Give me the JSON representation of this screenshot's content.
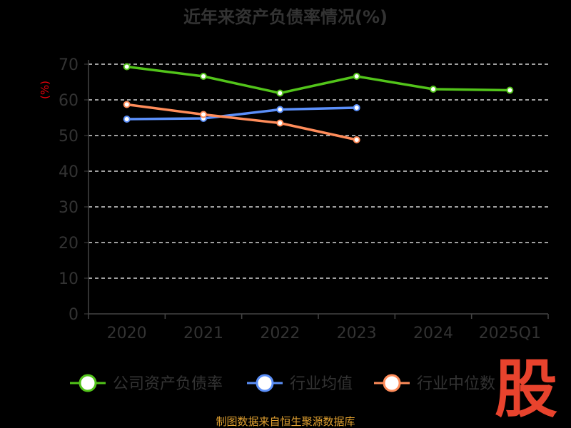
{
  "chart_data": {
    "type": "line",
    "title": "近年来资产负债率情况(%)",
    "ylabel": "(%)",
    "xlabel": "",
    "ylim": [
      0,
      70
    ],
    "yticks": [
      0,
      10,
      20,
      30,
      40,
      50,
      60,
      70
    ],
    "grid": "horizontal dashed",
    "legend_position": "bottom",
    "categories": [
      "2020",
      "2021",
      "2022",
      "2023",
      "2024",
      "2025Q1"
    ],
    "series": [
      {
        "name": "公司资产负债率",
        "color": "#52c41a",
        "values": [
          69.3,
          66.6,
          61.9,
          66.6,
          63.0,
          62.7
        ]
      },
      {
        "name": "行业均值",
        "color": "#5b8ff9",
        "values": [
          54.6,
          54.8,
          57.3,
          57.8,
          null,
          null
        ]
      },
      {
        "name": "行业中位数",
        "color": "#ff8c5a",
        "values": [
          58.7,
          55.9,
          53.5,
          48.8,
          null,
          null
        ]
      }
    ]
  },
  "source_note": "制图数据来自恒生聚源数据库",
  "watermark": "股",
  "colors": {
    "background": "#000000",
    "text": "#333333",
    "axis": "#444444",
    "grid": "#ffffff",
    "ylabel": "#e8000b",
    "source": "#e0a030",
    "watermark": "#e8432d"
  }
}
